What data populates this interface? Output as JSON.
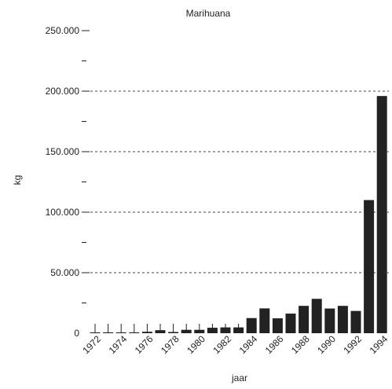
{
  "chart_data": {
    "type": "bar",
    "title": "Marihuana",
    "xlabel": "jaar",
    "ylabel": "kg",
    "ylim": [
      0,
      250000
    ],
    "y_ticks": [
      {
        "value": 0,
        "label": "0"
      },
      {
        "value": 50000,
        "label": "50.000"
      },
      {
        "value": 100000,
        "label": "100.000"
      },
      {
        "value": 150000,
        "label": "150.000"
      },
      {
        "value": 200000,
        "label": "200.000"
      },
      {
        "value": 250000,
        "label": "250.000"
      }
    ],
    "y_minor_ticks": [
      25000,
      75000,
      125000,
      175000,
      225000
    ],
    "gridlines": [
      50000,
      100000,
      150000,
      200000
    ],
    "x_tick_labels": [
      "1972",
      "1974",
      "1976",
      "1978",
      "1980",
      "1982",
      "1984",
      "1986",
      "1988",
      "1990",
      "1992",
      "1994"
    ],
    "categories": [
      "1972",
      "1973",
      "1974",
      "1975",
      "1976",
      "1977",
      "1978",
      "1979",
      "1980",
      "1981",
      "1982",
      "1983",
      "1984",
      "1985",
      "1986",
      "1987",
      "1988",
      "1989",
      "1990",
      "1991",
      "1992",
      "1993",
      "1994"
    ],
    "values": [
      500,
      700,
      700,
      700,
      1200,
      2500,
      1000,
      2800,
      2800,
      4500,
      4800,
      4800,
      12500,
      20500,
      12300,
      16200,
      22600,
      28400,
      20400,
      22600,
      18400,
      110000,
      196000
    ],
    "colors": {
      "bar": "#222222",
      "grid": "#444444",
      "axis": "#222222"
    }
  }
}
